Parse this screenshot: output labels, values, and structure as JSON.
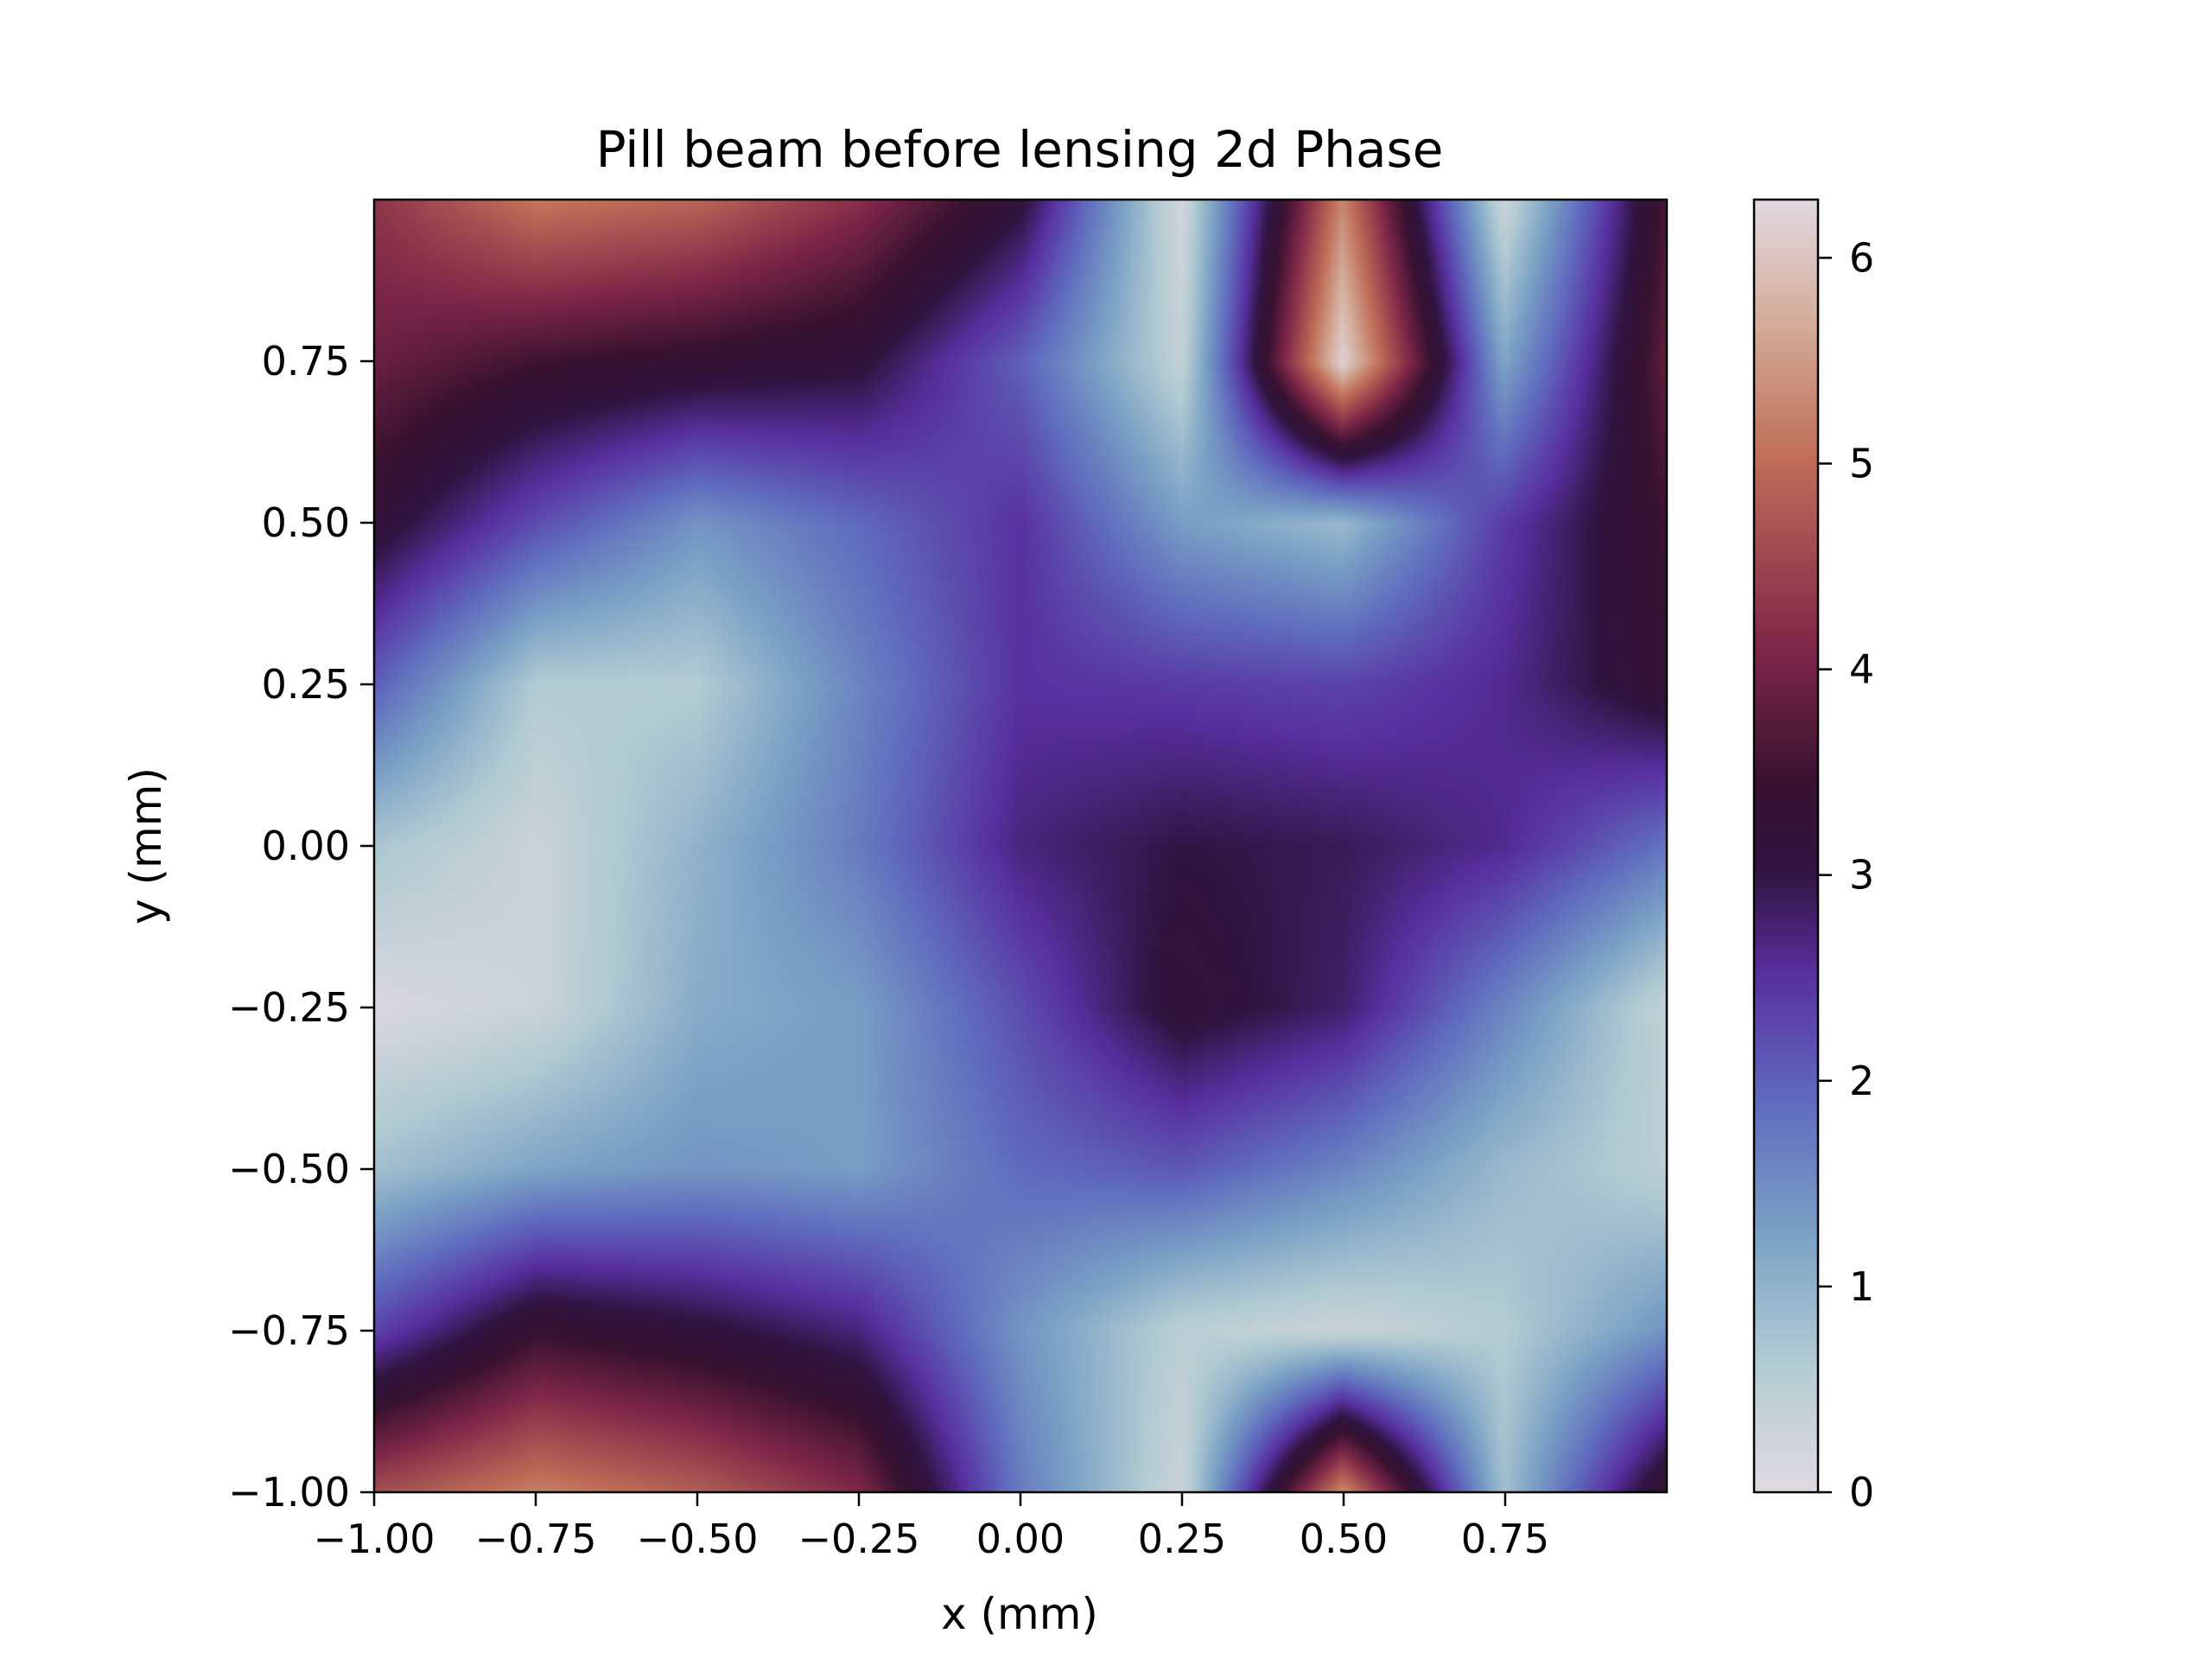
{
  "chart_data": {
    "type": "heatmap",
    "title": "Pill beam before lensing 2d Phase",
    "xlabel": "x (mm)",
    "ylabel": "y (mm)",
    "xlim": [
      -1.0,
      1.0
    ],
    "ylim": [
      -1.0,
      1.0
    ],
    "x_ticks": [
      -1.0,
      -0.75,
      -0.5,
      -0.25,
      0.0,
      0.25,
      0.5,
      0.75
    ],
    "x_tick_labels": [
      "−1.00",
      "−0.75",
      "−0.50",
      "−0.25",
      "0.00",
      "0.25",
      "0.50",
      "0.75"
    ],
    "y_ticks": [
      -1.0,
      -0.75,
      -0.5,
      -0.25,
      0.0,
      0.25,
      0.5,
      0.75
    ],
    "y_tick_labels": [
      "−1.00",
      "−0.75",
      "−0.50",
      "−0.25",
      "0.00",
      "0.25",
      "0.50",
      "0.75"
    ],
    "colormap": "twilight",
    "colorbar": {
      "range": [
        0,
        6.283
      ],
      "ticks": [
        0,
        1,
        2,
        3,
        4,
        5,
        6
      ],
      "tick_labels": [
        "0",
        "1",
        "2",
        "3",
        "4",
        "5",
        "6"
      ]
    },
    "grid": false,
    "phase_field_samples": {
      "x": [
        -1.0,
        -0.75,
        -0.5,
        -0.25,
        0.0,
        0.25,
        0.5,
        0.75,
        1.0
      ],
      "y": [
        1.0,
        0.75,
        0.5,
        0.25,
        0.0,
        -0.25,
        -0.5,
        -0.75,
        -1.0
      ],
      "z": [
        [
          4.3,
          5.1,
          4.9,
          4.2,
          3.1,
          0.2,
          5.3,
          0.3,
          3.6
        ],
        [
          3.9,
          3.5,
          3.3,
          3.1,
          2.0,
          0.4,
          6.2,
          1.2,
          3.8
        ],
        [
          3.2,
          2.2,
          1.4,
          1.9,
          2.5,
          1.3,
          0.9,
          2.4,
          3.5
        ],
        [
          2.0,
          0.6,
          0.6,
          1.6,
          2.5,
          2.4,
          2.3,
          2.6,
          3.3
        ],
        [
          0.7,
          0.3,
          1.0,
          1.7,
          2.7,
          3.0,
          2.9,
          2.6,
          1.8
        ],
        [
          0.1,
          0.3,
          1.1,
          1.3,
          2.2,
          3.2,
          2.8,
          1.6,
          0.4
        ],
        [
          0.8,
          1.2,
          1.4,
          1.3,
          1.9,
          2.1,
          1.6,
          0.9,
          0.5
        ],
        [
          2.3,
          3.4,
          3.1,
          2.7,
          1.4,
          0.5,
          0.3,
          0.6,
          1.4
        ],
        [
          4.6,
          5.2,
          4.8,
          4.1,
          1.7,
          0.3,
          5.3,
          0.8,
          3.4
        ]
      ]
    }
  }
}
